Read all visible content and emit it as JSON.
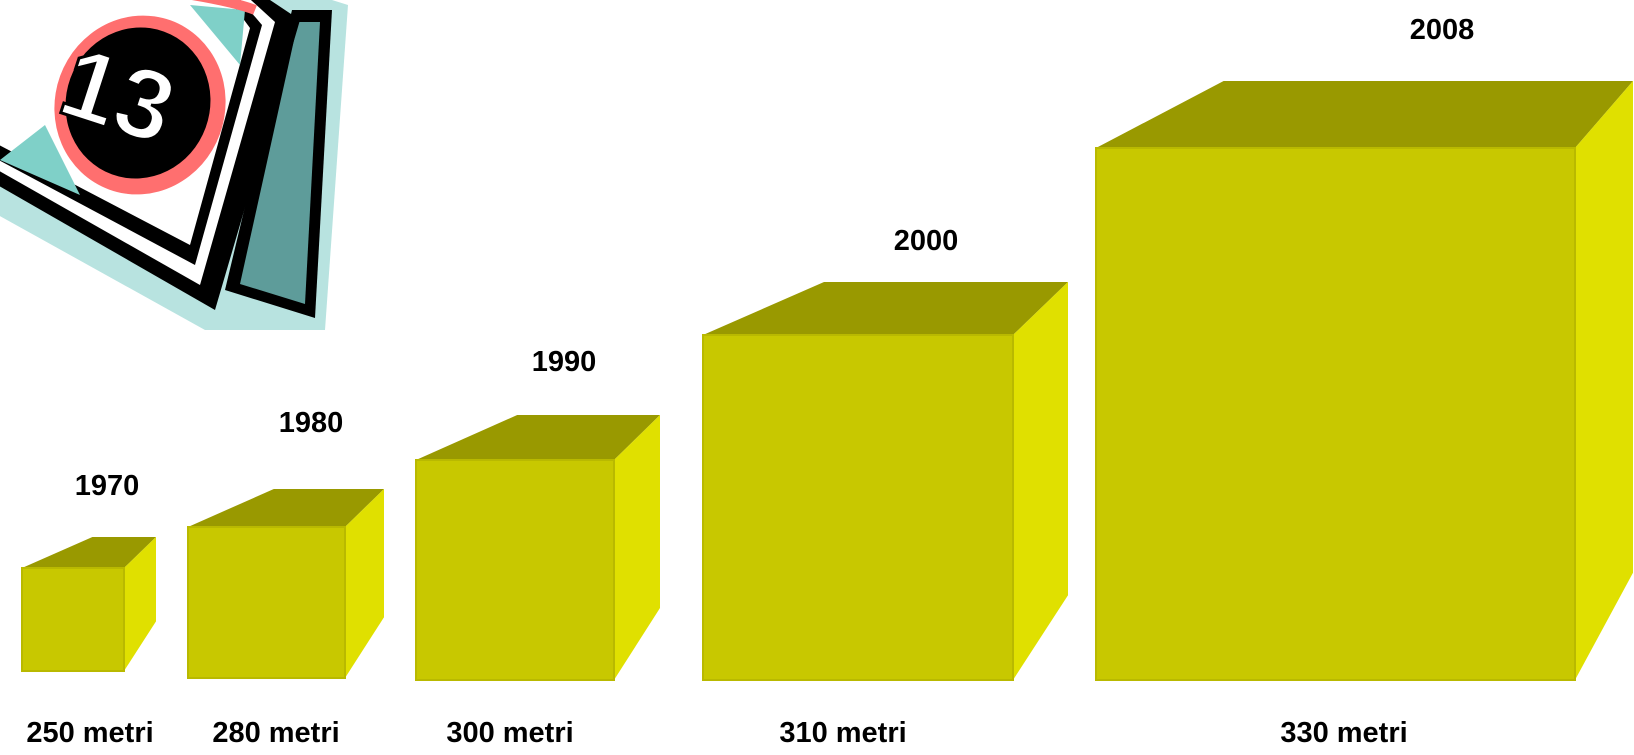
{
  "colors": {
    "cube_front": "#c8c800",
    "cube_top": "#999900",
    "cube_side": "#e0e000",
    "background": "#ffffff",
    "label_text": "#000000"
  },
  "clipart": {
    "icon": "calendar-page-icon",
    "number": "13"
  },
  "cubes": [
    {
      "year": "1970",
      "size_label": "250 metri"
    },
    {
      "year": "1980",
      "size_label": "280 metri"
    },
    {
      "year": "1990",
      "size_label": "300 metri"
    },
    {
      "year": "2000",
      "size_label": "310 metri"
    },
    {
      "year": "2008",
      "size_label": "330 metri"
    }
  ]
}
